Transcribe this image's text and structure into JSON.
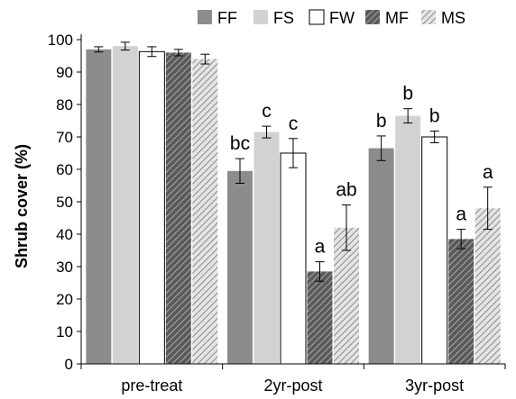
{
  "chart_data": {
    "type": "bar",
    "title": "",
    "xlabel": "",
    "ylabel": "Shrub cover (%)",
    "ylim": [
      0,
      100
    ],
    "yticks": [
      "0",
      "10",
      "20",
      "30",
      "40",
      "50",
      "60",
      "70",
      "80",
      "90",
      "100"
    ],
    "categories": [
      "pre-treat",
      "2yr-post",
      "3yr-post"
    ],
    "legend_position": "top",
    "series": [
      {
        "name": "FF",
        "color": "#8c8c8c",
        "pattern": "solid",
        "values": [
          97,
          59.5,
          66.5
        ],
        "errors": [
          0.8,
          3.8,
          3.8
        ],
        "labels": [
          "",
          "bc",
          "b"
        ]
      },
      {
        "name": "FS",
        "color": "#d2d2d2",
        "pattern": "solid",
        "values": [
          98,
          71.5,
          76.5
        ],
        "errors": [
          1.2,
          1.8,
          2.2
        ],
        "labels": [
          "",
          "c",
          "b"
        ]
      },
      {
        "name": "FW",
        "color": "#ffffff",
        "pattern": "solid",
        "values": [
          96.3,
          65,
          70
        ],
        "errors": [
          1.5,
          4.5,
          1.8
        ],
        "labels": [
          "",
          "c",
          "b"
        ]
      },
      {
        "name": "MF",
        "color": "#6e6e6e",
        "pattern": "hatch",
        "values": [
          96,
          28.5,
          38.5
        ],
        "errors": [
          1.0,
          3.0,
          3.0
        ],
        "labels": [
          "",
          "a",
          "a"
        ]
      },
      {
        "name": "MS",
        "color": "#b4b4b4",
        "pattern": "hatch",
        "values": [
          94,
          42,
          48
        ],
        "errors": [
          1.5,
          7.0,
          6.5
        ],
        "labels": [
          "",
          "ab",
          "a"
        ]
      }
    ]
  }
}
